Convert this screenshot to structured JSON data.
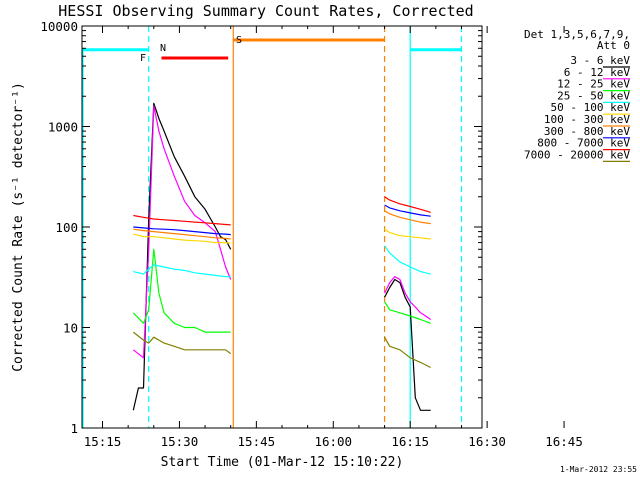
{
  "chart_data": {
    "type": "line",
    "title": "HESSI Observing Summary Count Rates, Corrected",
    "xlabel": "Start Time (01-Mar-12 15:10:22)",
    "ylabel": "Corrected Count Rate (s⁻¹ detector⁻¹)",
    "ylog": true,
    "ylim": [
      1,
      10000
    ],
    "xlim_minutes": [
      0,
      78
    ],
    "x_ticks": [
      "15:15",
      "15:30",
      "15:45",
      "16:00",
      "16:15",
      "16:30",
      "16:45"
    ],
    "y_ticks": [
      "1",
      "10",
      "100",
      "1000",
      "10000"
    ],
    "footer_date": "1-Mar-2012 23:55",
    "legend_header": [
      "Det 1,3,5,6,7,9,",
      "Att 0"
    ],
    "flags": [
      {
        "label": "F",
        "color": "#ff0000",
        "start": 15.5,
        "end": 28.5
      },
      {
        "label": "N",
        "color": "#00ffff"
      },
      {
        "label": "S",
        "color": "#ff8000",
        "start": 29.5,
        "end": 59
      }
    ],
    "night_bars": [
      {
        "start": 0,
        "end": 13,
        "value": 5800
      },
      {
        "start": 64,
        "end": 74,
        "value": 5800
      }
    ],
    "event_lines": [
      {
        "x": 13,
        "style": "dashed",
        "color": "#00ffff"
      },
      {
        "x": 29.5,
        "style": "solid",
        "color": "#ff8000"
      },
      {
        "x": 59,
        "style": "dashed",
        "color": "#ff8000"
      },
      {
        "x": 64,
        "style": "solid",
        "color": "#00ffff"
      },
      {
        "x": 74,
        "style": "dashed",
        "color": "#00ffff"
      }
    ],
    "series": [
      {
        "name": "3 - 6 keV",
        "color": "#000000",
        "segments": [
          {
            "x": [
              10,
              11,
              12,
              13,
              14,
              15,
              16,
              18,
              20,
              22,
              24,
              26,
              27,
              28,
              29
            ],
            "y": [
              1.5,
              2.5,
              2.5,
              120,
              1700,
              1200,
              900,
              500,
              320,
              200,
              150,
              100,
              80,
              75,
              60
            ]
          },
          {
            "x": [
              59,
              60,
              61,
              62,
              63,
              64,
              65,
              66,
              67,
              68
            ],
            "y": [
              20,
              25,
              30,
              28,
              20,
              16,
              2,
              1.5,
              1.5,
              1.5
            ]
          }
        ]
      },
      {
        "name": "6 - 12 keV",
        "color": "#ff00ff",
        "segments": [
          {
            "x": [
              10,
              12,
              13,
              14,
              15,
              16,
              18,
              20,
              22,
              24,
              26,
              27,
              28,
              29
            ],
            "y": [
              6,
              5,
              60,
              1600,
              900,
              600,
              320,
              180,
              130,
              110,
              90,
              60,
              40,
              30
            ]
          },
          {
            "x": [
              59,
              60,
              61,
              62,
              63,
              64,
              65,
              66,
              67,
              68
            ],
            "y": [
              22,
              28,
              32,
              30,
              22,
              18,
              16,
              14,
              13,
              12
            ]
          }
        ]
      },
      {
        "name": "12 - 25 keV",
        "color": "#00ff00",
        "segments": [
          {
            "x": [
              10,
              12,
              13,
              14,
              15,
              16,
              18,
              20,
              22,
              24,
              26,
              28,
              29
            ],
            "y": [
              14,
              11,
              15,
              60,
              22,
              14,
              11,
              10,
              10,
              9,
              9,
              9,
              9
            ]
          },
          {
            "x": [
              59,
              60,
              62,
              64,
              66,
              68
            ],
            "y": [
              18,
              15,
              14,
              13,
              12,
              11
            ]
          }
        ]
      },
      {
        "name": "25 - 50 keV",
        "color": "#00ffff",
        "segments": [
          {
            "x": [
              10,
              12,
              13,
              14,
              16,
              18,
              20,
              22,
              24,
              26,
              28,
              29
            ],
            "y": [
              36,
              34,
              38,
              42,
              40,
              38,
              37,
              35,
              34,
              33,
              32,
              32
            ]
          },
          {
            "x": [
              59,
              60,
              62,
              64,
              66,
              68
            ],
            "y": [
              65,
              55,
              45,
              40,
              36,
              34
            ]
          }
        ]
      },
      {
        "name": "50 - 100 keV",
        "color": "#ffd700",
        "segments": [
          {
            "x": [
              10,
              12,
              14,
              16,
              18,
              20,
              22,
              24,
              26,
              28,
              29
            ],
            "y": [
              85,
              80,
              80,
              78,
              76,
              74,
              73,
              72,
              70,
              70,
              69
            ]
          },
          {
            "x": [
              59,
              60,
              62,
              64,
              66,
              68
            ],
            "y": [
              95,
              88,
              82,
              80,
              78,
              76
            ]
          }
        ]
      },
      {
        "name": "100 - 300 keV",
        "color": "#ff8000",
        "segments": [
          {
            "x": [
              10,
              12,
              14,
              16,
              18,
              20,
              22,
              24,
              26,
              28,
              29
            ],
            "y": [
              95,
              92,
              90,
              88,
              86,
              84,
              82,
              80,
              78,
              77,
              76
            ]
          },
          {
            "x": [
              59,
              60,
              62,
              64,
              66,
              68
            ],
            "y": [
              145,
              135,
              125,
              118,
              112,
              108
            ]
          }
        ]
      },
      {
        "name": "300 - 800 keV",
        "color": "#0000ff",
        "segments": [
          {
            "x": [
              10,
              12,
              14,
              16,
              18,
              20,
              22,
              24,
              26,
              28,
              29
            ],
            "y": [
              100,
              98,
              96,
              95,
              94,
              92,
              90,
              88,
              86,
              85,
              84
            ]
          },
          {
            "x": [
              59,
              60,
              62,
              64,
              66,
              68
            ],
            "y": [
              165,
              155,
              145,
              138,
              132,
              128
            ]
          }
        ]
      },
      {
        "name": "800 - 7000 keV",
        "color": "#ff0000",
        "segments": [
          {
            "x": [
              10,
              12,
              14,
              16,
              18,
              20,
              22,
              24,
              26,
              28,
              29
            ],
            "y": [
              130,
              125,
              120,
              118,
              116,
              114,
              112,
              110,
              108,
              106,
              105
            ]
          },
          {
            "x": [
              59,
              60,
              62,
              64,
              66,
              68
            ],
            "y": [
              200,
              185,
              170,
              160,
              150,
              140
            ]
          }
        ]
      },
      {
        "name": "7000 - 20000 keV",
        "color": "#808000",
        "segments": [
          {
            "x": [
              10,
              12,
              13,
              14,
              16,
              18,
              20,
              22,
              24,
              26,
              28,
              29
            ],
            "y": [
              9,
              7.5,
              7,
              8,
              7,
              6.5,
              6,
              6,
              6,
              6,
              6,
              5.5
            ]
          },
          {
            "x": [
              59,
              60,
              62,
              64,
              66,
              68
            ],
            "y": [
              8,
              6.5,
              6,
              5,
              4.5,
              4
            ]
          }
        ]
      }
    ]
  }
}
